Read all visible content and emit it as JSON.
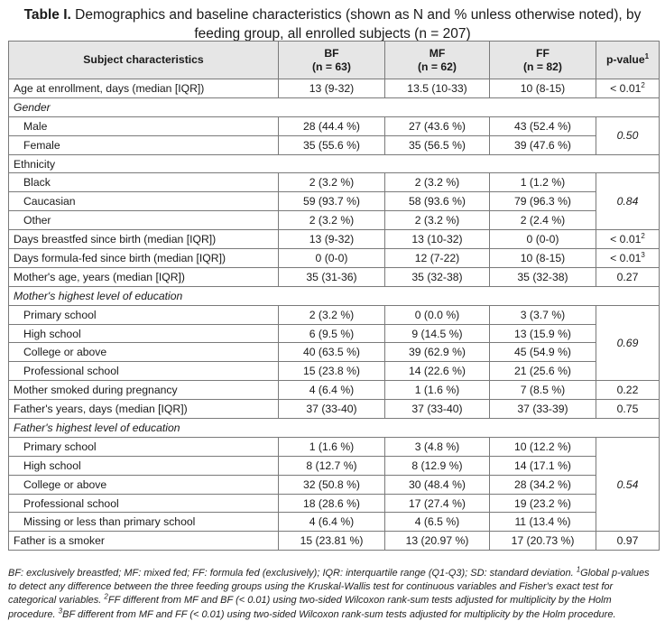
{
  "caption": {
    "label": "Table I.",
    "text": "Demographics and baseline characteristics (shown as N and % unless otherwise noted), by feeding group, all enrolled subjects (n = 207)"
  },
  "header": {
    "subject": "Subject characteristics",
    "bf": "BF",
    "bf_n": "(n = 63)",
    "mf": "MF",
    "mf_n": "(n = 62)",
    "ff": "FF",
    "ff_n": "(n = 82)",
    "pvalue": "p-value",
    "pvalue_sup": "1"
  },
  "rows": {
    "age": {
      "label": "Age at enrollment, days (median [IQR])",
      "bf": "13 (9-32)",
      "mf": "13.5 (10-33)",
      "ff": "10 (8-15)",
      "p": "< 0.01",
      "p_sup": "2"
    },
    "gender": {
      "label": "Gender",
      "p": "0.50"
    },
    "male": {
      "label": "Male",
      "bf": "28 (44.4 %)",
      "mf": "27 (43.6 %)",
      "ff": "43 (52.4 %)"
    },
    "female": {
      "label": "Female",
      "bf": "35 (55.6 %)",
      "mf": "35 (56.5 %)",
      "ff": "39 (47.6 %)"
    },
    "ethnicity": {
      "label": "Ethnicity",
      "p": "0.84"
    },
    "black": {
      "label": "Black",
      "bf": "2 (3.2 %)",
      "mf": "2 (3.2 %)",
      "ff": "1 (1.2 %)"
    },
    "caucasian": {
      "label": "Caucasian",
      "bf": "59 (93.7 %)",
      "mf": "58 (93.6 %)",
      "ff": "79 (96.3 %)"
    },
    "other": {
      "label": "Other",
      "bf": "2 (3.2 %)",
      "mf": "2 (3.2 %)",
      "ff": "2 (2.4 %)"
    },
    "breastfed": {
      "label": "Days breastfed since birth (median [IQR])",
      "bf": "13 (9-32)",
      "mf": "13 (10-32)",
      "ff": "0 (0-0)",
      "p": "< 0.01",
      "p_sup": "2"
    },
    "formulafed": {
      "label": "Days formula-fed since birth (median [IQR])",
      "bf": "0 (0-0)",
      "mf": "12 (7-22)",
      "ff": "10 (8-15)",
      "p": "< 0.01",
      "p_sup": "3"
    },
    "mother_age": {
      "label": "Mother's age, years (median [IQR])",
      "bf": "35 (31-36)",
      "mf": "35 (32-38)",
      "ff": "35 (32-38)",
      "p": "0.27"
    },
    "mother_edu": {
      "label": "Mother's highest level of education",
      "p": "0.69"
    },
    "m_primary": {
      "label": "Primary school",
      "bf": "2 (3.2 %)",
      "mf": "0 (0.0 %)",
      "ff": "3 (3.7 %)"
    },
    "m_high": {
      "label": "High school",
      "bf": "6 (9.5 %)",
      "mf": "9 (14.5 %)",
      "ff": "13 (15.9 %)"
    },
    "m_college": {
      "label": "College or above",
      "bf": "40 (63.5 %)",
      "mf": "39 (62.9 %)",
      "ff": "45 (54.9 %)"
    },
    "m_prof": {
      "label": "Professional school",
      "bf": "15 (23.8 %)",
      "mf": "14 (22.6 %)",
      "ff": "21 (25.6 %)"
    },
    "smoked": {
      "label": "Mother smoked during pregnancy",
      "bf": "4 (6.4 %)",
      "mf": "1 (1.6 %)",
      "ff": "7 (8.5 %)",
      "p": "0.22"
    },
    "father_age": {
      "label": "Father's years, days (median [IQR])",
      "bf": "37 (33-40)",
      "mf": "37 (33-40)",
      "ff": "37 (33-39)",
      "p": "0.75"
    },
    "father_edu": {
      "label": "Father's highest level of education",
      "p": "0.54"
    },
    "f_primary": {
      "label": "Primary school",
      "bf": "1 (1.6 %)",
      "mf": "3 (4.8 %)",
      "ff": "10 (12.2 %)"
    },
    "f_high": {
      "label": "High school",
      "bf": "8 (12.7 %)",
      "mf": "8 (12.9 %)",
      "ff": "14 (17.1 %)"
    },
    "f_college": {
      "label": "College or above",
      "bf": "32 (50.8 %)",
      "mf": "30 (48.4 %)",
      "ff": "28 (34.2 %)"
    },
    "f_prof": {
      "label": "Professional school",
      "bf": "18 (28.6 %)",
      "mf": "17 (27.4 %)",
      "ff": "19 (23.2 %)"
    },
    "f_missing": {
      "label": "Missing or less than primary school",
      "bf": "4 (6.4 %)",
      "mf": "4 (6.5 %)",
      "ff": "11 (13.4 %)"
    },
    "father_smoker": {
      "label": "Father is a smoker",
      "bf": "15 (23.81 %)",
      "mf": "13 (20.97 %)",
      "ff": "17 (20.73 %)",
      "p": "0.97"
    }
  },
  "footnote": {
    "abbrev": "BF: exclusively breastfed; MF: mixed fed; FF: formula fed (exclusively); IQR: interquartile range (Q1-Q3); SD: standard deviation.",
    "n1_sup": "1",
    "n1": "Global p-values to detect any difference between the three feeding groups using the Kruskal-Wallis test for continuous variables and Fisher's exact test for categorical variables.",
    "n2_sup": "2",
    "n2": "FF different from MF and BF (< 0.01) using two-sided Wilcoxon rank-sum tests adjusted for multiplicity by the Holm procedure.",
    "n3_sup": "3",
    "n3": "BF different from MF and FF (< 0.01) using two-sided Wilcoxon rank-sum tests adjusted for multiplicity by the Holm procedure."
  }
}
